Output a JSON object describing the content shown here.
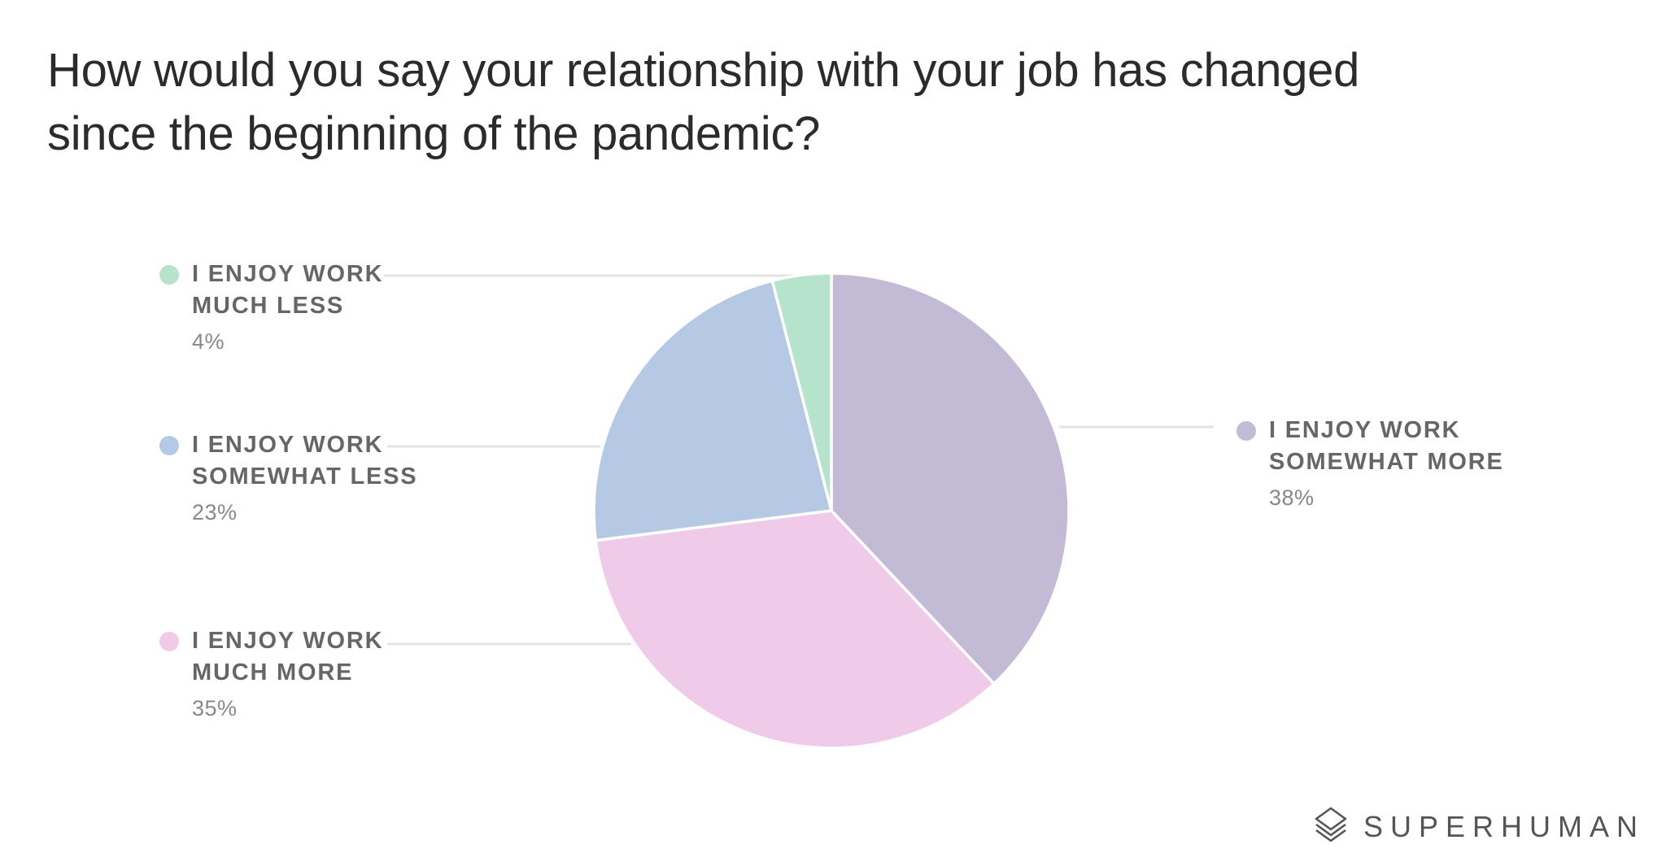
{
  "title": "How would you say your relationship with your job has changed since the beginning of the pandemic?",
  "brand": {
    "name": "SUPERHUMAN",
    "logo_icon": "superhuman-logo-icon"
  },
  "chart_data": {
    "type": "pie",
    "title": "How would you say your relationship with your job has changed since the beginning of the pandemic?",
    "slices": [
      {
        "line1": "I ENJOY WORK",
        "line2": "SOMEWHAT MORE",
        "label": "I ENJOY WORK SOMEWHAT MORE",
        "value": 38,
        "value_label": "38%",
        "color": "#c3bbd5"
      },
      {
        "line1": "I ENJOY WORK",
        "line2": "MUCH MORE",
        "label": "I ENJOY WORK MUCH MORE",
        "value": 35,
        "value_label": "35%",
        "color": "#efcae9"
      },
      {
        "line1": "I ENJOY WORK",
        "line2": "SOMEWHAT LESS",
        "label": "I ENJOY WORK SOMEWHAT LESS",
        "value": 23,
        "value_label": "23%",
        "color": "#b5c9e5"
      },
      {
        "line1": "I ENJOY WORK",
        "line2": "MUCH LESS",
        "label": "I ENJOY WORK MUCH LESS",
        "value": 4,
        "value_label": "4%",
        "color": "#b5e3cc"
      }
    ],
    "legend": "outside-callouts"
  }
}
